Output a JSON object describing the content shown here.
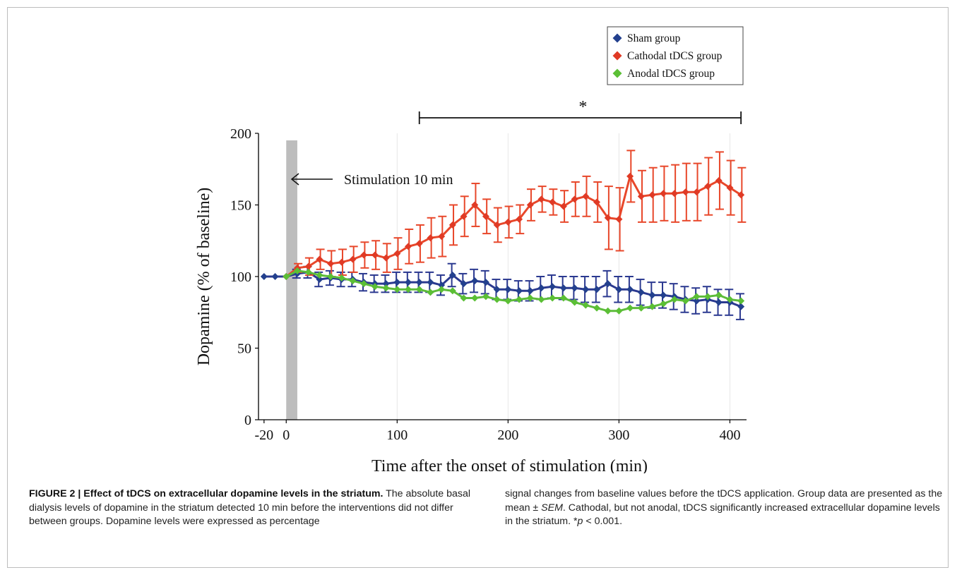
{
  "chart_data": {
    "type": "line",
    "xlabel": "Time after the onset of stimulation (min)",
    "ylabel": "Dopamine (% of baseline)",
    "xlim": [
      -25,
      415
    ],
    "ylim": [
      0,
      200
    ],
    "x_ticks": [
      -20,
      0,
      100,
      200,
      300,
      400
    ],
    "y_ticks": [
      0,
      50,
      100,
      150,
      200
    ],
    "grid": "vertical lines at 100, 200, 300, 400",
    "legend_position": "top-right",
    "stimulation_band": {
      "x_start": 0,
      "x_end": 10,
      "label": "Stimulation 10 min",
      "color": "#bdbdbd"
    },
    "significance": {
      "x_start": 120,
      "x_end": 410,
      "label": "*"
    },
    "x": [
      -20,
      -10,
      0,
      10,
      20,
      30,
      40,
      50,
      60,
      70,
      80,
      90,
      100,
      110,
      120,
      130,
      140,
      150,
      160,
      170,
      180,
      190,
      200,
      210,
      220,
      230,
      240,
      250,
      260,
      270,
      280,
      290,
      300,
      310,
      320,
      330,
      340,
      350,
      360,
      370,
      380,
      390,
      400,
      410
    ],
    "series": [
      {
        "name": "Sham group",
        "color": "#2b3990",
        "marker_color": "#23408e",
        "values": [
          100,
          100,
          100,
          102,
          103,
          98,
          99,
          98,
          98,
          96,
          95,
          95,
          96,
          96,
          96,
          96,
          94,
          101,
          95,
          97,
          96,
          91,
          91,
          90,
          90,
          92,
          93,
          92,
          92,
          91,
          91,
          95,
          91,
          91,
          89,
          87,
          87,
          86,
          84,
          83,
          84,
          82,
          82,
          79
        ],
        "errors": [
          0,
          0,
          0,
          3,
          4,
          5,
          5,
          5,
          5,
          6,
          6,
          6,
          7,
          7,
          7,
          7,
          7,
          8,
          7,
          8,
          8,
          7,
          7,
          7,
          7,
          8,
          8,
          8,
          8,
          9,
          9,
          9,
          9,
          9,
          9,
          9,
          9,
          9,
          9,
          9,
          9,
          9,
          9,
          9
        ]
      },
      {
        "name": "Cathodal tDCS group",
        "color": "#e8472a",
        "marker_color": "#e03a25",
        "values": [
          null,
          null,
          100,
          106,
          107,
          112,
          109,
          110,
          112,
          115,
          115,
          113,
          116,
          121,
          123,
          127,
          128,
          136,
          142,
          150,
          142,
          136,
          138,
          140,
          150,
          154,
          152,
          149,
          154,
          156,
          152,
          141,
          140,
          170,
          156,
          157,
          158,
          158,
          159,
          159,
          163,
          167,
          162,
          157
        ],
        "errors": [
          0,
          0,
          0,
          3,
          6,
          7,
          9,
          9,
          9,
          9,
          10,
          10,
          11,
          12,
          13,
          14,
          14,
          14,
          14,
          15,
          12,
          12,
          11,
          10,
          11,
          9,
          9,
          11,
          12,
          14,
          14,
          22,
          22,
          18,
          18,
          19,
          19,
          20,
          20,
          20,
          20,
          20,
          19,
          19
        ]
      },
      {
        "name": "Anodal tDCS group",
        "color": "#5dbb3b",
        "marker_color": "#5bbf35",
        "values": [
          null,
          null,
          100,
          104,
          103,
          101,
          100,
          99,
          97,
          95,
          93,
          92,
          91,
          91,
          91,
          89,
          91,
          90,
          85,
          85,
          86,
          84,
          83,
          84,
          85,
          84,
          85,
          85,
          82,
          80,
          78,
          76,
          76,
          78,
          78,
          79,
          81,
          84,
          83,
          86,
          86,
          87,
          84,
          83
        ]
      }
    ]
  },
  "legend": {
    "items": [
      {
        "label": "Sham group",
        "color": "#23408e"
      },
      {
        "label": "Cathodal tDCS group",
        "color": "#e03a25"
      },
      {
        "label": "Anodal tDCS group",
        "color": "#5bbf35"
      }
    ]
  },
  "caption": {
    "title": "FIGURE 2 | Effect of tDCS on extracellular dopamine levels in the striatum.",
    "text_left": " The absolute basal dialysis levels of dopamine in the striatum detected 10 min before the interventions did not differ between groups. Dopamine levels were expressed as percentage",
    "text_right_1": "signal changes from baseline values before the tDCS application. Group data are presented as the mean ± ",
    "sem": "SEM",
    "text_right_2": ". Cathodal, but not anodal, tDCS significantly increased extracellular dopamine levels in the striatum. *",
    "p": "p",
    "text_right_3": " < 0.001."
  }
}
